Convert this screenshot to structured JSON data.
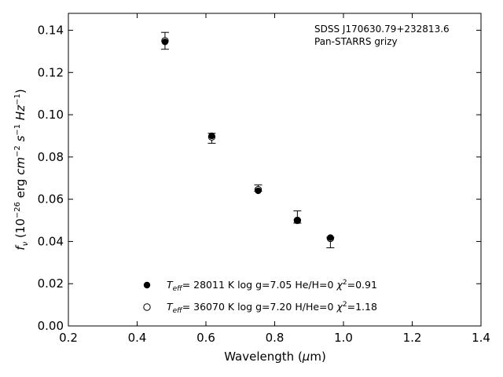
{
  "chart_data": {
    "type": "scatter",
    "annotation": [
      "SDSS J170630.79+232813.6",
      "Pan-STARRS grizy"
    ],
    "xlabel": "Wavelength (μm)",
    "ylabel": "fν (10⁻²⁶ erg cm⁻² s⁻¹ Hz⁻¹)",
    "xlim": [
      0.2,
      1.4
    ],
    "ylim": [
      0.0,
      0.148
    ],
    "xticks": [
      "0.2",
      "0.4",
      "0.6",
      "0.8",
      "1.0",
      "1.2",
      "1.4"
    ],
    "yticks": [
      "0.00",
      "0.02",
      "0.04",
      "0.06",
      "0.08",
      "0.10",
      "0.12",
      "0.14"
    ],
    "grid": false,
    "observed": {
      "points": [
        {
          "x": 0.481,
          "y": 0.135,
          "err_low": 0.131,
          "err_high": 0.139
        },
        {
          "x": 0.617,
          "y": 0.089,
          "err_low": 0.0865,
          "err_high": 0.0912
        },
        {
          "x": 0.752,
          "y": 0.065,
          "err_low": 0.0638,
          "err_high": 0.0668
        },
        {
          "x": 0.866,
          "y": 0.051,
          "err_low": 0.0487,
          "err_high": 0.0545
        },
        {
          "x": 0.962,
          "y": 0.041,
          "err_low": 0.037,
          "err_high": 0.042
        }
      ]
    },
    "series": [
      {
        "name": "Teff= 28011 K  log g=7.05  He/H=0  χ2=0.91",
        "marker": "filled-circle",
        "color": "#000000",
        "values": [
          {
            "x": 0.481,
            "y": 0.1345
          },
          {
            "x": 0.617,
            "y": 0.09
          },
          {
            "x": 0.752,
            "y": 0.064
          },
          {
            "x": 0.866,
            "y": 0.05
          },
          {
            "x": 0.962,
            "y": 0.0418
          }
        ]
      },
      {
        "name": "Teff= 36070 K  log g=7.20  H/He=0  χ2=1.18",
        "marker": "open-circle",
        "color": "#000000",
        "values": [
          {
            "x": 0.481,
            "y": 0.135
          },
          {
            "x": 0.617,
            "y": 0.0895
          },
          {
            "x": 0.752,
            "y": 0.0645
          },
          {
            "x": 0.866,
            "y": 0.05
          },
          {
            "x": 0.962,
            "y": 0.0415
          }
        ]
      }
    ],
    "legend": {
      "placement": "lower-center",
      "entries": [
        {
          "teff": "28011 K",
          "logg": "log g=7.05",
          "comp": "He/H=0",
          "chi2": "=0.91"
        },
        {
          "teff": "36070 K",
          "logg": "log g=7.20",
          "comp": "H/He=0",
          "chi2": "=1.18"
        }
      ]
    }
  }
}
